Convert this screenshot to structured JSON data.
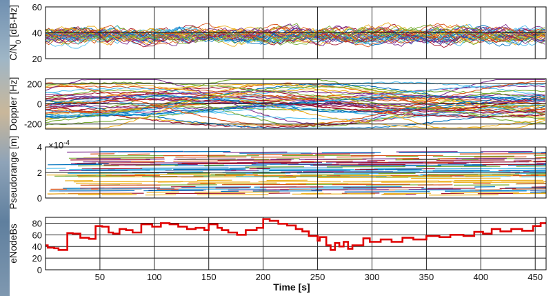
{
  "chart_data": [
    {
      "type": "line",
      "id": "cn0",
      "ylabel_main": "C/N",
      "ylabel_sub": "0",
      "ylabel_unit": " [dB-Hz]",
      "xlim": [
        0,
        460
      ],
      "ylim": [
        20,
        60
      ],
      "yticks": [
        20,
        40,
        60
      ],
      "xgrid": [
        50,
        100,
        150,
        200,
        250,
        300,
        350,
        400,
        450
      ],
      "grid": true,
      "series_count": 40,
      "value_range": [
        28,
        55
      ],
      "typical_mean": 38
    },
    {
      "type": "line",
      "id": "doppler",
      "ylabel": "Doppler [Hz]",
      "xlim": [
        0,
        460
      ],
      "ylim": [
        -250,
        250
      ],
      "yticks": [
        -200,
        0,
        200
      ],
      "xgrid": [
        50,
        100,
        150,
        200,
        250,
        300,
        350,
        400,
        450
      ],
      "grid": true,
      "series_count": 40,
      "value_range": [
        -240,
        240
      ]
    },
    {
      "type": "line",
      "id": "pseudorange",
      "ylabel": "Pseudorange [m]",
      "exponent_base": "×10",
      "exponent_power": "-4",
      "xlim": [
        0,
        460
      ],
      "ylim": [
        0,
        4
      ],
      "yticks": [
        0,
        2,
        4
      ],
      "xgrid": [
        50,
        100,
        150,
        200,
        250,
        300,
        350,
        400,
        450
      ],
      "grid": true,
      "series_count": 45,
      "value_range": [
        0.2,
        3.6
      ]
    },
    {
      "type": "line",
      "id": "enodebs",
      "ylabel": "eNodeBs",
      "xlabel": "Time [s]",
      "xlim": [
        0,
        460
      ],
      "ylim": [
        0,
        90
      ],
      "yticks": [
        0,
        20,
        40,
        60,
        80
      ],
      "xticks": [
        50,
        100,
        150,
        200,
        250,
        300,
        350,
        400,
        450
      ],
      "grid": true,
      "series": [
        {
          "color": "#e00000",
          "x": [
            0,
            2,
            8,
            12,
            18,
            20,
            25,
            32,
            40,
            46,
            52,
            58,
            62,
            68,
            74,
            80,
            88,
            98,
            106,
            114,
            122,
            130,
            138,
            146,
            150,
            158,
            162,
            168,
            176,
            184,
            194,
            200,
            206,
            214,
            222,
            230,
            236,
            242,
            250,
            252,
            258,
            262,
            266,
            270,
            274,
            278,
            282,
            292,
            298,
            308,
            318,
            328,
            338,
            350,
            362,
            372,
            384,
            394,
            402,
            410,
            418,
            428,
            438,
            448,
            455,
            460
          ],
          "y": [
            42,
            38,
            37,
            34,
            34,
            63,
            62,
            55,
            53,
            75,
            74,
            64,
            62,
            70,
            68,
            64,
            78,
            74,
            80,
            78,
            74,
            70,
            72,
            68,
            78,
            72,
            68,
            64,
            60,
            68,
            72,
            87,
            84,
            79,
            76,
            70,
            66,
            58,
            50,
            56,
            42,
            34,
            46,
            40,
            48,
            36,
            42,
            54,
            48,
            52,
            48,
            55,
            52,
            58,
            56,
            60,
            58,
            65,
            62,
            70,
            66,
            70,
            67,
            75,
            80,
            79
          ]
        }
      ]
    }
  ],
  "colors": {
    "series_palette": [
      "#0072bd",
      "#d95319",
      "#edb120",
      "#7e2f8e",
      "#77ac30",
      "#4dbeee",
      "#a2142f"
    ],
    "enodebs_line": "#e00000",
    "grid": "#222222",
    "axis": "#000000"
  }
}
